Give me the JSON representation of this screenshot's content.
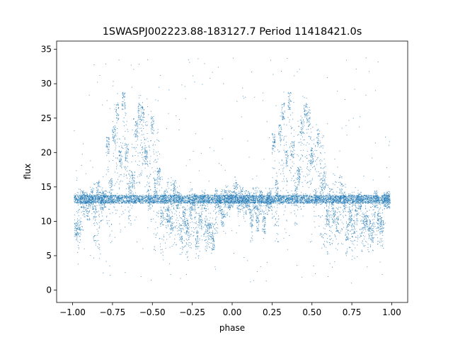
{
  "chart_data": {
    "type": "scatter",
    "title": "1SWASPJ002223.88-183127.7 Period 11418421.0s",
    "xlabel": "phase",
    "ylabel": "flux",
    "xlim": [
      -1.1,
      1.1
    ],
    "ylim": [
      -1.8,
      36.2
    ],
    "xticks": [
      -1.0,
      -0.75,
      -0.5,
      -0.25,
      0.0,
      0.25,
      0.5,
      0.75,
      1.0
    ],
    "xtick_labels": [
      "−1.00",
      "−0.75",
      "−0.50",
      "−0.25",
      "0.00",
      "0.25",
      "0.50",
      "0.75",
      "1.00"
    ],
    "yticks": [
      0,
      5,
      10,
      15,
      20,
      25,
      30,
      35
    ],
    "ytick_labels": [
      "0",
      "5",
      "10",
      "15",
      "20",
      "25",
      "30",
      "35"
    ],
    "grid": false,
    "marker_color": "#1f77b4",
    "series": [
      {
        "name": "",
        "baseline_flux": 13.2,
        "x": [
          -0.98,
          -0.96,
          -0.94,
          -0.92,
          -0.9,
          -0.88,
          -0.86,
          -0.84,
          -0.82,
          -0.8,
          -0.78,
          -0.76,
          -0.74,
          -0.72,
          -0.7,
          -0.68,
          -0.66,
          -0.64,
          -0.62,
          -0.6,
          -0.58,
          -0.56,
          -0.54,
          -0.52,
          -0.5,
          -0.48,
          -0.46,
          -0.44,
          -0.42,
          -0.4,
          -0.38,
          -0.36,
          -0.34,
          -0.32,
          -0.3,
          -0.28,
          -0.26,
          -0.24,
          -0.22,
          -0.2,
          -0.18,
          -0.16,
          -0.14,
          -0.12,
          -0.1,
          -0.08,
          -0.06,
          -0.04,
          -0.02,
          0.0,
          0.02,
          0.04,
          0.06,
          0.08,
          0.1,
          0.12,
          0.14,
          0.16,
          0.18,
          0.2,
          0.22,
          0.24,
          0.26,
          0.28,
          0.3,
          0.32,
          0.34,
          0.36,
          0.38,
          0.4,
          0.42,
          0.44,
          0.46,
          0.48,
          0.5,
          0.52,
          0.54,
          0.56,
          0.58,
          0.6,
          0.62,
          0.64,
          0.66,
          0.68,
          0.7,
          0.72,
          0.74,
          0.76,
          0.78,
          0.8,
          0.82,
          0.84,
          0.86,
          0.88,
          0.9,
          0.92,
          0.94,
          0.96,
          0.98
        ],
        "y": [
          8.5,
          9.0,
          13.2,
          13.0,
          12.8,
          13.4,
          11.0,
          14.5,
          13.0,
          13.2,
          21.0,
          14.8,
          22.5,
          26.0,
          19.0,
          27.5,
          20.0,
          14.0,
          16.0,
          23.5,
          26.0,
          25.5,
          19.5,
          13.4,
          24.0,
          15.0,
          16.5,
          10.5,
          13.6,
          11.0,
          9.5,
          14.8,
          13.0,
          8.5,
          10.5,
          9.0,
          11.5,
          12.8,
          7.5,
          10.0,
          13.0,
          9.5,
          8.5,
          7.0,
          13.2,
          12.8,
          10.5,
          13.4,
          13.0,
          13.2,
          14.5,
          13.0,
          13.6,
          12.9,
          13.1,
          10.5,
          13.0,
          11.0,
          13.2,
          9.5,
          13.0,
          13.2,
          21.5,
          14.8,
          23.0,
          26.0,
          19.0,
          27.5,
          20.5,
          14.0,
          16.5,
          23.5,
          26.0,
          25.0,
          19.5,
          13.4,
          22.0,
          15.0,
          16.0,
          10.5,
          13.6,
          11.0,
          9.5,
          14.5,
          13.0,
          8.5,
          10.5,
          9.0,
          11.5,
          13.0,
          9.5,
          10.0,
          9.0,
          8.5,
          13.2,
          10.0,
          9.5,
          13.0,
          13.1
        ],
        "y_range_low": [
          7.0,
          5.5,
          8.0,
          10.5,
          10.0,
          11.0,
          6.5,
          5.5,
          10.0,
          11.5,
          9.0,
          6.5,
          10.0,
          10.5,
          8.0,
          11.0,
          12.0,
          9.0,
          11.5,
          10.0,
          15.0,
          16.0,
          12.5,
          9.0,
          8.0,
          5.5,
          6.0,
          5.0,
          6.5,
          7.0,
          5.0,
          6.5,
          7.5,
          5.0,
          6.0,
          4.0,
          6.0,
          7.5,
          4.0,
          5.0,
          7.0,
          5.5,
          6.0,
          5.0,
          8.0,
          11.0,
          8.0,
          10.5,
          11.5,
          12.0,
          12.5,
          11.0,
          11.5,
          10.0,
          11.0,
          7.0,
          10.5,
          8.5,
          11.0,
          7.5,
          11.0,
          11.5,
          9.0,
          7.0,
          10.0,
          10.5,
          8.0,
          11.0,
          12.0,
          9.0,
          11.5,
          10.5,
          15.5,
          15.5,
          12.5,
          9.0,
          8.0,
          5.5,
          6.0,
          5.0,
          6.5,
          7.0,
          5.0,
          6.5,
          7.5,
          5.0,
          6.0,
          4.0,
          6.0,
          7.5,
          5.5,
          6.0,
          5.5,
          5.5,
          8.0,
          6.0,
          6.0,
          12.0,
          12.0
        ],
        "y_range_high": [
          16.0,
          15.0,
          15.0,
          14.5,
          14.0,
          15.0,
          15.5,
          16.0,
          15.0,
          14.5,
          22.5,
          17.0,
          27.0,
          27.5,
          22.5,
          28.0,
          26.0,
          17.5,
          25.0,
          26.0,
          28.5,
          27.5,
          24.5,
          22.0,
          26.0,
          22.5,
          23.5,
          16.5,
          15.0,
          17.0,
          16.0,
          17.0,
          15.5,
          14.5,
          13.5,
          14.5,
          15.0,
          14.5,
          14.0,
          14.0,
          14.5,
          14.0,
          14.0,
          12.5,
          15.0,
          14.0,
          16.0,
          15.5,
          14.5,
          14.0,
          16.5,
          15.5,
          15.0,
          14.5,
          14.5,
          15.0,
          15.0,
          15.0,
          14.5,
          14.0,
          15.0,
          15.0,
          23.0,
          17.0,
          27.5,
          27.0,
          22.5,
          28.0,
          26.0,
          17.5,
          25.0,
          26.0,
          28.0,
          27.5,
          24.5,
          22.0,
          24.5,
          22.5,
          23.0,
          16.5,
          15.0,
          17.0,
          16.0,
          17.0,
          15.5,
          14.0,
          14.0,
          14.5,
          15.0,
          14.5,
          14.0,
          14.0,
          13.5,
          13.5,
          14.5,
          13.5,
          13.5,
          14.0,
          14.0
        ]
      }
    ]
  }
}
